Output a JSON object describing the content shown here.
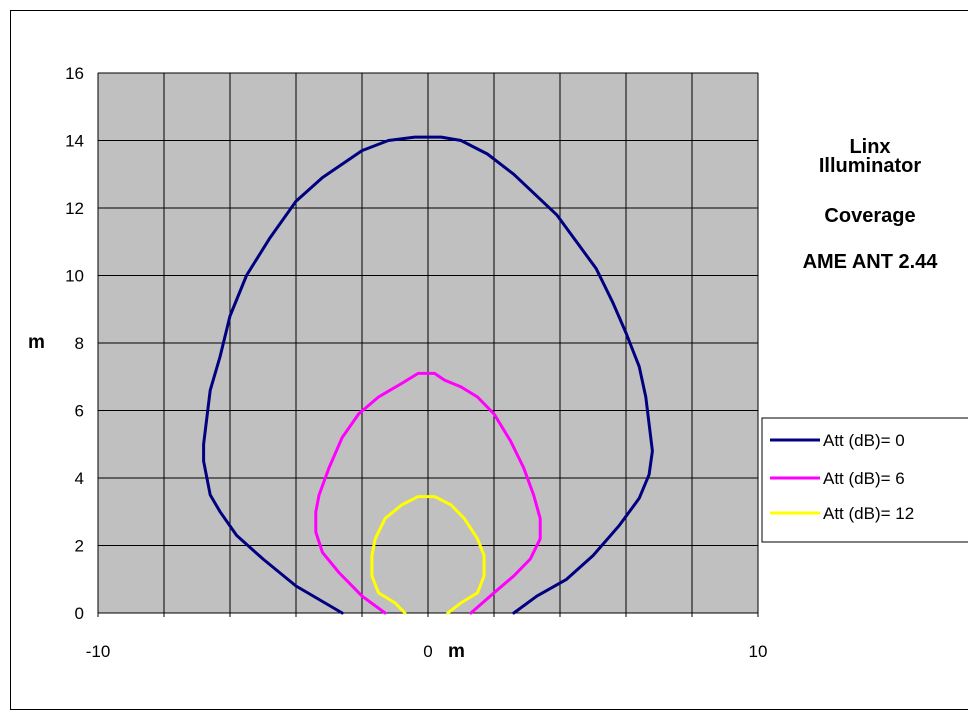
{
  "chart_data": {
    "type": "line",
    "x_axis": {
      "min": -10,
      "max": 10,
      "step": 2,
      "tick_labels": [
        "-10",
        "0",
        "10"
      ],
      "label": "m"
    },
    "y_axis": {
      "min": 0,
      "max": 16,
      "step": 2,
      "tick_labels": [
        "0",
        "2",
        "4",
        "6",
        "8",
        "10",
        "12",
        "14",
        "16"
      ],
      "label": "m"
    },
    "grid": true,
    "plot_background": "#c0c0c0",
    "annotation": [
      "Linx",
      "Illuminator",
      "Coverage",
      "AME ANT 2.44"
    ],
    "legend_position": "right",
    "series": [
      {
        "name": "Att (dB)= 0",
        "color": "#000080",
        "points": [
          [
            -2.6,
            0.0
          ],
          [
            -4.0,
            0.8
          ],
          [
            -5.0,
            1.6
          ],
          [
            -5.8,
            2.3
          ],
          [
            -6.3,
            3.0
          ],
          [
            -6.6,
            3.5
          ],
          [
            -6.7,
            4.0
          ],
          [
            -6.8,
            4.5
          ],
          [
            -6.8,
            5.0
          ],
          [
            -6.7,
            5.8
          ],
          [
            -6.6,
            6.6
          ],
          [
            -6.3,
            7.6
          ],
          [
            -6.0,
            8.8
          ],
          [
            -5.5,
            10.0
          ],
          [
            -4.8,
            11.1
          ],
          [
            -4.0,
            12.2
          ],
          [
            -3.2,
            12.9
          ],
          [
            -2.6,
            13.3
          ],
          [
            -2.0,
            13.7
          ],
          [
            -1.2,
            14.0
          ],
          [
            -0.4,
            14.1
          ],
          [
            0.4,
            14.1
          ],
          [
            1.0,
            14.0
          ],
          [
            1.8,
            13.6
          ],
          [
            2.6,
            13.0
          ],
          [
            3.9,
            11.8
          ],
          [
            4.5,
            11.0
          ],
          [
            5.1,
            10.2
          ],
          [
            5.6,
            9.2
          ],
          [
            6.0,
            8.3
          ],
          [
            6.4,
            7.3
          ],
          [
            6.6,
            6.4
          ],
          [
            6.7,
            5.6
          ],
          [
            6.8,
            4.8
          ],
          [
            6.7,
            4.1
          ],
          [
            6.4,
            3.4
          ],
          [
            5.8,
            2.6
          ],
          [
            5.0,
            1.7
          ],
          [
            4.2,
            1.0
          ],
          [
            3.3,
            0.5
          ],
          [
            2.6,
            0.0
          ]
        ]
      },
      {
        "name": "Att (dB)= 6",
        "color": "#ff00ff",
        "points": [
          [
            -1.3,
            0.0
          ],
          [
            -2.0,
            0.5
          ],
          [
            -2.7,
            1.2
          ],
          [
            -3.2,
            1.8
          ],
          [
            -3.4,
            2.4
          ],
          [
            -3.4,
            3.0
          ],
          [
            -3.3,
            3.5
          ],
          [
            -3.0,
            4.3
          ],
          [
            -2.6,
            5.2
          ],
          [
            -2.1,
            5.9
          ],
          [
            -1.5,
            6.4
          ],
          [
            -0.8,
            6.8
          ],
          [
            -0.3,
            7.1
          ],
          [
            0.2,
            7.1
          ],
          [
            0.5,
            6.9
          ],
          [
            1.0,
            6.7
          ],
          [
            1.5,
            6.4
          ],
          [
            2.0,
            5.9
          ],
          [
            2.5,
            5.1
          ],
          [
            2.9,
            4.3
          ],
          [
            3.2,
            3.5
          ],
          [
            3.4,
            2.8
          ],
          [
            3.4,
            2.2
          ],
          [
            3.1,
            1.6
          ],
          [
            2.6,
            1.1
          ],
          [
            2.0,
            0.6
          ],
          [
            1.3,
            0.0
          ]
        ]
      },
      {
        "name": "Att (dB)= 12",
        "color": "#ffff00",
        "points": [
          [
            -0.7,
            0.0
          ],
          [
            -1.0,
            0.3
          ],
          [
            -1.5,
            0.6
          ],
          [
            -1.7,
            1.1
          ],
          [
            -1.7,
            1.7
          ],
          [
            -1.6,
            2.2
          ],
          [
            -1.3,
            2.8
          ],
          [
            -0.8,
            3.2
          ],
          [
            -0.3,
            3.45
          ],
          [
            0.2,
            3.45
          ],
          [
            0.7,
            3.2
          ],
          [
            1.1,
            2.8
          ],
          [
            1.5,
            2.2
          ],
          [
            1.7,
            1.7
          ],
          [
            1.7,
            1.1
          ],
          [
            1.5,
            0.6
          ],
          [
            1.0,
            0.3
          ],
          [
            0.6,
            0.0
          ]
        ]
      }
    ]
  }
}
